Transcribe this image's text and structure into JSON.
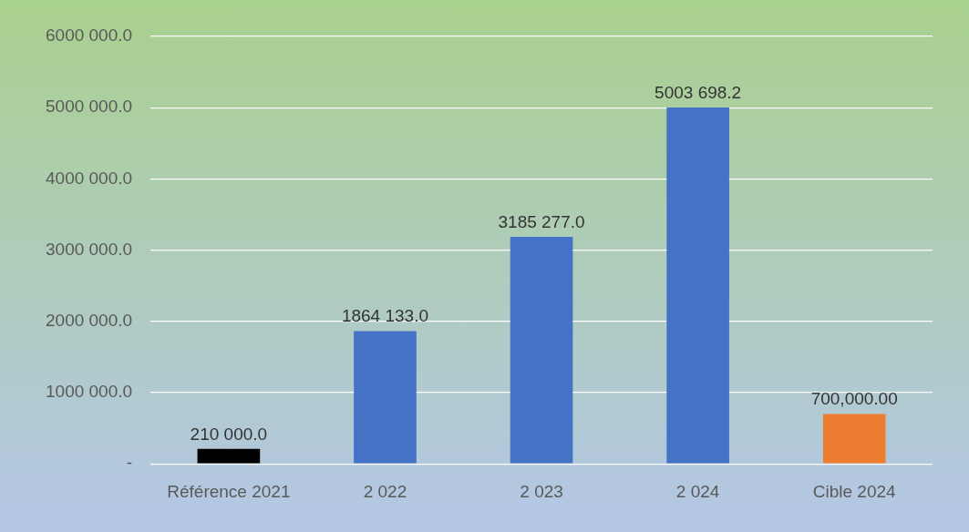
{
  "chart_data": {
    "type": "bar",
    "categories": [
      "Référence 2021",
      "2 022",
      "2 023",
      "2 024",
      "Cible 2024"
    ],
    "values": [
      210000,
      1864133,
      3185277,
      5003698.2,
      700000
    ],
    "colors": [
      "#000000",
      "#4472c4",
      "#4472c4",
      "#4472c4",
      "#ed7d31"
    ],
    "value_labels": [
      "210 000.0",
      "1864 133.0",
      "3185 277.0",
      "5003 698.2",
      "700,000.00"
    ],
    "ylim": [
      0,
      6000000
    ],
    "yticks": [
      {
        "value": 0,
        "label": "-"
      },
      {
        "value": 1000000,
        "label": "1000 000.0"
      },
      {
        "value": 2000000,
        "label": "2000 000.0"
      },
      {
        "value": 3000000,
        "label": "3000 000.0"
      },
      {
        "value": 4000000,
        "label": "4000 000.0"
      },
      {
        "value": 5000000,
        "label": "5000 000.0"
      },
      {
        "value": 6000000,
        "label": "6000 000.0"
      }
    ],
    "grid": "y",
    "legend": false
  }
}
